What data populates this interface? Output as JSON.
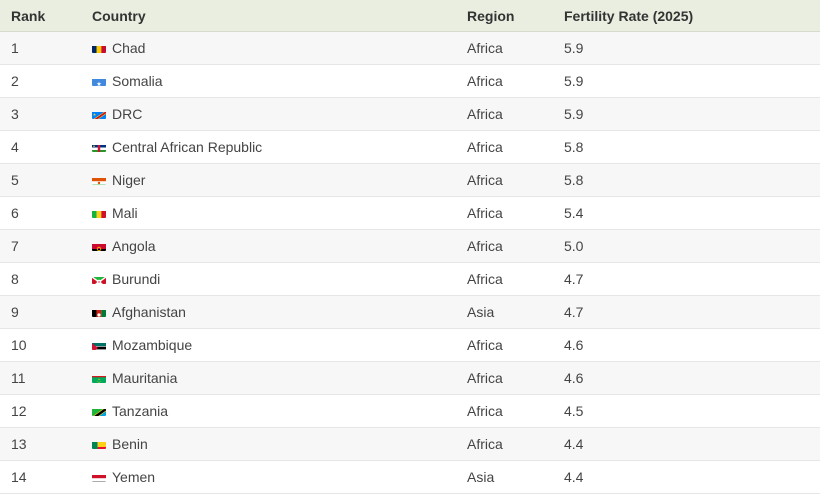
{
  "header": {
    "rank": "Rank",
    "country": "Country",
    "region": "Region",
    "rate": "Fertility Rate (2025)"
  },
  "rows": [
    {
      "rank": "1",
      "country": "Chad",
      "flag": "chad-flag-icon",
      "region": "Africa",
      "rate": "5.9"
    },
    {
      "rank": "2",
      "country": "Somalia",
      "flag": "somalia-flag-icon",
      "region": "Africa",
      "rate": "5.9"
    },
    {
      "rank": "3",
      "country": "DRC",
      "flag": "drc-flag-icon",
      "region": "Africa",
      "rate": "5.9"
    },
    {
      "rank": "4",
      "country": "Central African Republic",
      "flag": "car-flag-icon",
      "region": "Africa",
      "rate": "5.8"
    },
    {
      "rank": "5",
      "country": "Niger",
      "flag": "niger-flag-icon",
      "region": "Africa",
      "rate": "5.8"
    },
    {
      "rank": "6",
      "country": "Mali",
      "flag": "mali-flag-icon",
      "region": "Africa",
      "rate": "5.4"
    },
    {
      "rank": "7",
      "country": "Angola",
      "flag": "angola-flag-icon",
      "region": "Africa",
      "rate": "5.0"
    },
    {
      "rank": "8",
      "country": "Burundi",
      "flag": "burundi-flag-icon",
      "region": "Africa",
      "rate": "4.7"
    },
    {
      "rank": "9",
      "country": "Afghanistan",
      "flag": "afghanistan-flag-icon",
      "region": "Asia",
      "rate": "4.7"
    },
    {
      "rank": "10",
      "country": "Mozambique",
      "flag": "mozambique-flag-icon",
      "region": "Africa",
      "rate": "4.6"
    },
    {
      "rank": "11",
      "country": "Mauritania",
      "flag": "mauritania-flag-icon",
      "region": "Africa",
      "rate": "4.6"
    },
    {
      "rank": "12",
      "country": "Tanzania",
      "flag": "tanzania-flag-icon",
      "region": "Africa",
      "rate": "4.5"
    },
    {
      "rank": "13",
      "country": "Benin",
      "flag": "benin-flag-icon",
      "region": "Africa",
      "rate": "4.4"
    },
    {
      "rank": "14",
      "country": "Yemen",
      "flag": "yemen-flag-icon",
      "region": "Asia",
      "rate": "4.4"
    }
  ],
  "colors": {
    "header_bg": "#e9eee0",
    "row_alt_bg": "#f7f7f7",
    "text": "#444444"
  }
}
